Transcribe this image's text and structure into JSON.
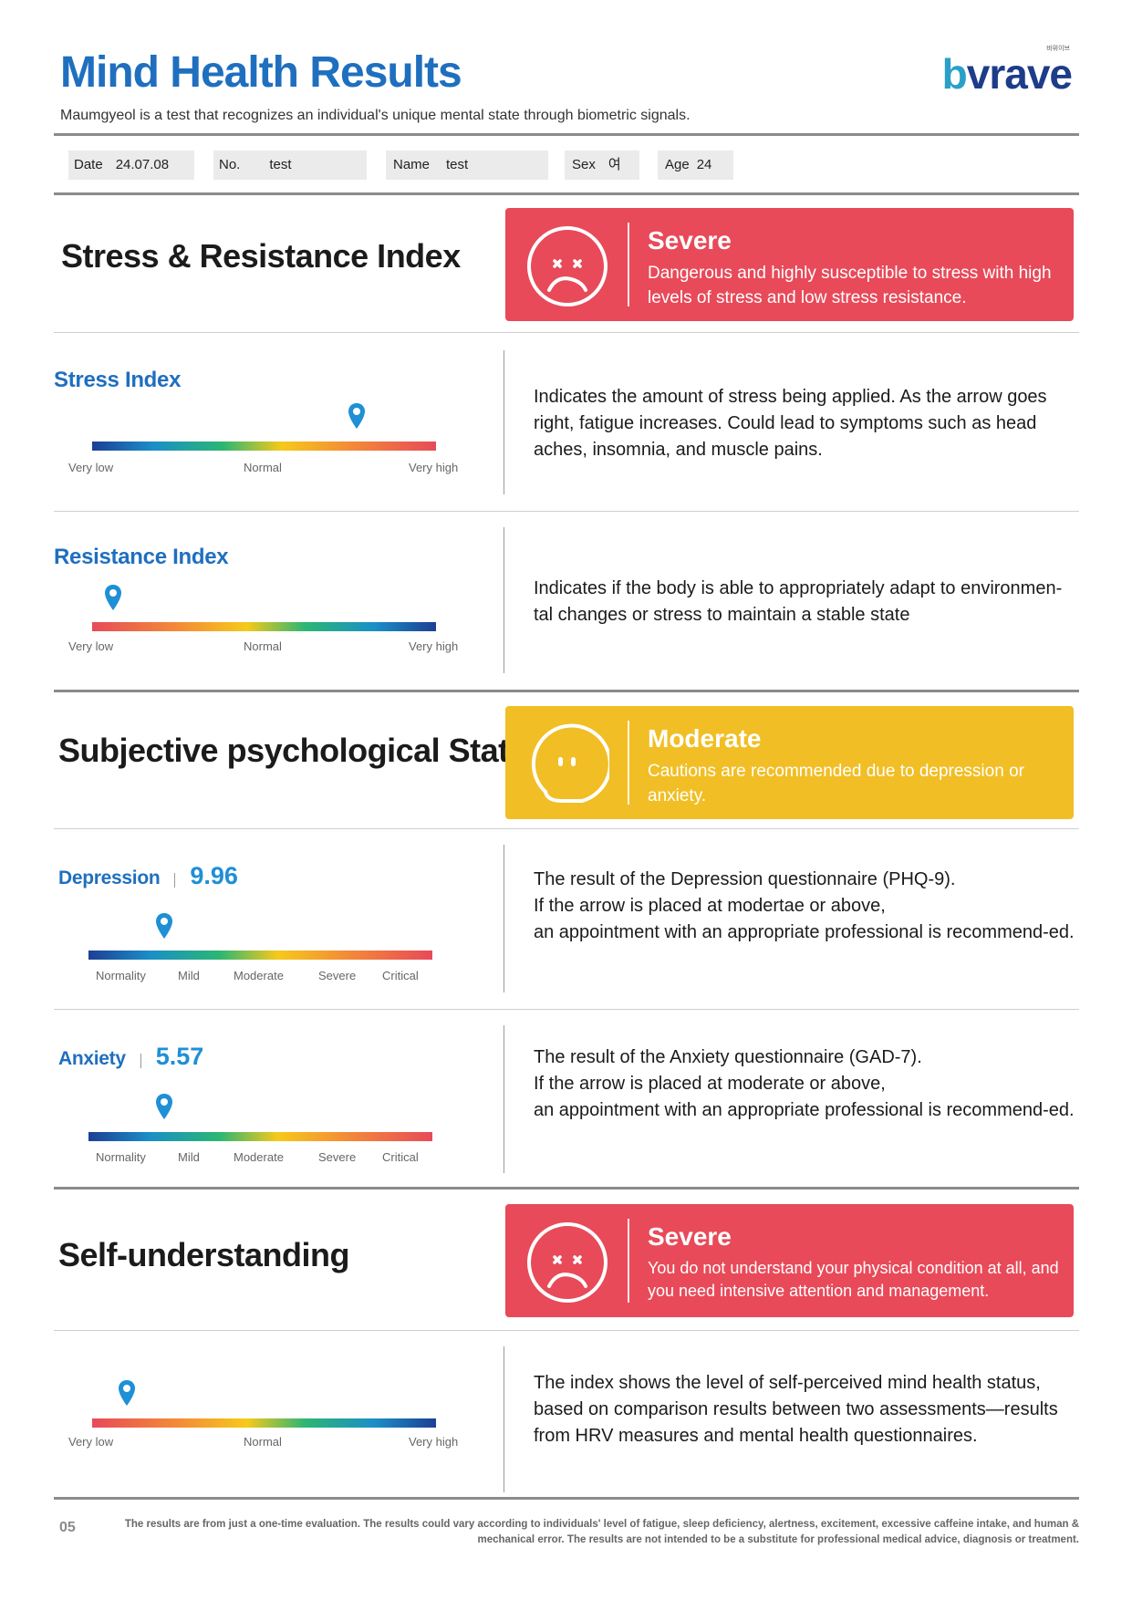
{
  "header": {
    "title": "Mind Health Results",
    "subtitle": "Maumgyeol is a test that recognizes an individual's unique mental state through biometric signals.",
    "logo_small": "바위이브",
    "logo_b": "b",
    "logo_rest": "vrave"
  },
  "info": {
    "date_label": "Date",
    "date_value": "24.07.08",
    "no_label": "No.",
    "no_value": "test",
    "name_label": "Name",
    "name_value": "test",
    "sex_label": "Sex",
    "sex_value": "여",
    "age_label": "Age",
    "age_value": "24"
  },
  "stress_resistance": {
    "title": "Stress & Resistance Index",
    "status": {
      "label": "Severe",
      "description": "Dangerous and highly susceptible to stress with high levels of stress and low stress resistance.",
      "color": "#e84a59"
    },
    "stress_index": {
      "title": "Stress Index",
      "level": 0.77,
      "scale": [
        "Very low",
        "Normal",
        "Very high"
      ],
      "description": "Indicates the amount of stress being applied. As the arrow goes right, fatigue increases. Could lead to symptoms such as head aches, insomnia, and muscle pains."
    },
    "resistance_index": {
      "title": "Resistance Index",
      "level": 0.06,
      "scale": [
        "Very low",
        "Normal",
        "Very high"
      ],
      "description": "Indicates if the body is able to appropriately adapt to environmen-tal changes or stress to maintain a stable state"
    }
  },
  "psychological": {
    "title": "Subjective psychological State",
    "status": {
      "label": "Moderate",
      "description": "Cautions are recommended due to depression or anxiety.",
      "color": "#f1be25"
    },
    "depression": {
      "title": "Depression",
      "score": "9.96",
      "level": 0.22,
      "scale": [
        "Normality",
        "Mild",
        "Moderate",
        "Severe",
        "Critical"
      ],
      "description_lines": [
        "The result of the Depression questionnaire (PHQ-9).",
        "If the arrow is placed at modertae or above,",
        "an appointment with an appropriate professional is recommend-ed."
      ]
    },
    "anxiety": {
      "title": "Anxiety",
      "score": "5.57",
      "level": 0.22,
      "scale": [
        "Normality",
        "Mild",
        "Moderate",
        "Severe",
        "Critical"
      ],
      "description_lines": [
        "The result of the Anxiety questionnaire (GAD-7).",
        "If the arrow is placed at moderate or above,",
        "an appointment with an appropriate professional is recommend-ed."
      ]
    }
  },
  "self_understanding": {
    "title": "Self-understanding",
    "status": {
      "label": "Severe",
      "description": "You do not understand your physical condition at all, and you need intensive attention and management.",
      "color": "#e84a59"
    },
    "index": {
      "level": 0.1,
      "scale": [
        "Very low",
        "Normal",
        "Very high"
      ],
      "description": "The index shows the level of self-perceived mind health status, based on comparison results between two assessments—results from HRV measures and mental health questionnaires."
    }
  },
  "footer": {
    "page": "05",
    "disclaimer": "The results are from just a one-time evaluation. The results could vary according to individuals' level of fatigue, sleep deficiency, alertness, excitement, excessive caffeine intake, and human & mechanical error. The results are not intended to be a substitute for professional medical advice, diagnosis or treatment."
  }
}
